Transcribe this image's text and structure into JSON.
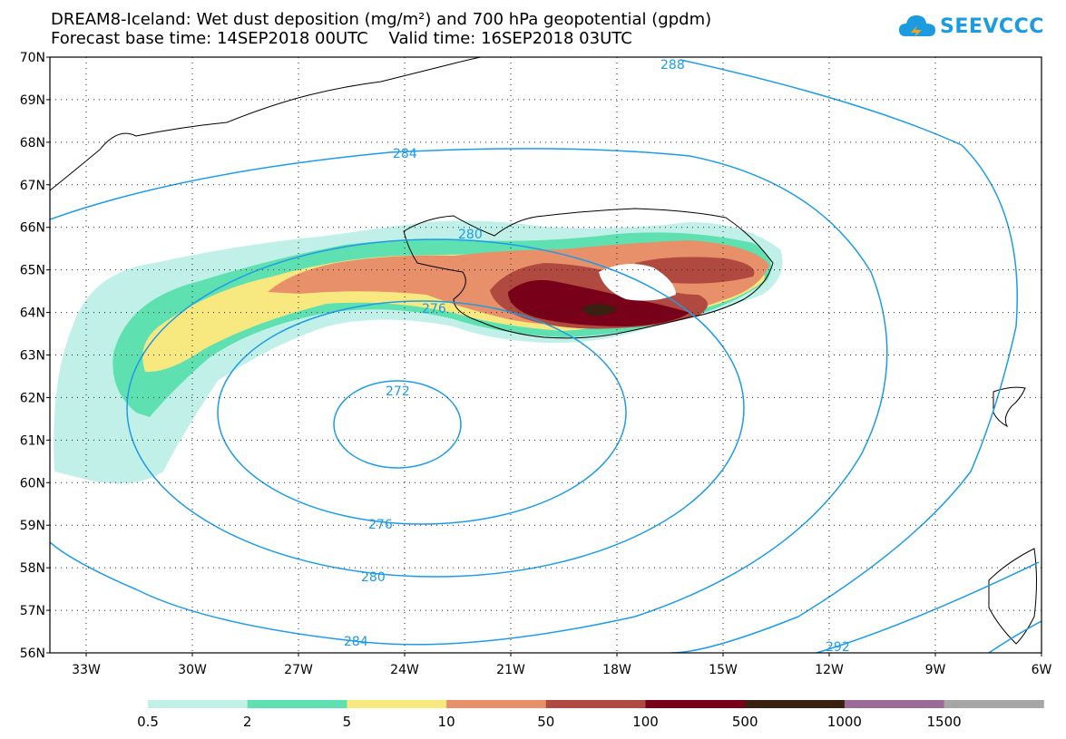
{
  "title": {
    "line1": "DREAM8-Iceland: Wet dust deposition (mg/m²) and 700 hPa geopotential (gpdm)",
    "line2": "Forecast base time: 14SEP2018 00UTC    Valid time: 16SEP2018 03UTC"
  },
  "logo": {
    "text": "SEEVCCC",
    "icon": "cloud-icon"
  },
  "map": {
    "lat_labels": [
      "70N",
      "69N",
      "68N",
      "67N",
      "66N",
      "65N",
      "64N",
      "63N",
      "62N",
      "61N",
      "60N",
      "59N",
      "58N",
      "57N",
      "56N"
    ],
    "lon_labels": [
      "33W",
      "30W",
      "27W",
      "24W",
      "21W",
      "18W",
      "15W",
      "12W",
      "9W",
      "6W"
    ],
    "contour_labels": [
      "288",
      "284",
      "280",
      "276",
      "272",
      "276",
      "280",
      "284",
      "292"
    ],
    "contour_color": "#1e9be6"
  },
  "legend": {
    "labels": [
      "0.5",
      "2",
      "5",
      "10",
      "50",
      "100",
      "500",
      "1000",
      "1500"
    ],
    "colors": [
      "#c0f0e8",
      "#5ee0b0",
      "#f8e880",
      "#e8906a",
      "#b04a40",
      "#780018",
      "#3a2010",
      "#9a6a98",
      "#a6a6a6"
    ]
  }
}
